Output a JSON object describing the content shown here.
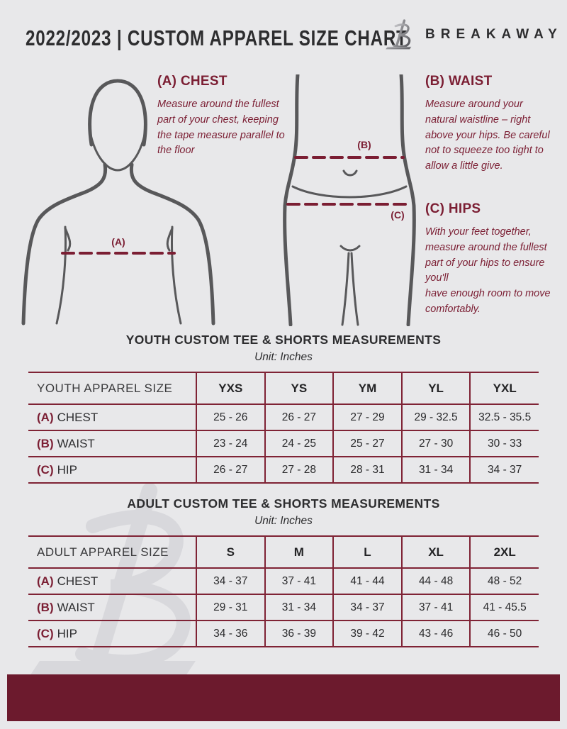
{
  "theme": {
    "background": "#e8e8ea",
    "accent": "#7b1e33",
    "footer_bar": "#6c1a2d",
    "text_dark": "#2e2e30",
    "figure_gray": "#58585a",
    "table_border": "#7f2335",
    "watermark_gray": "#d8d8dc"
  },
  "header": {
    "title": "2022/2023  |  CUSTOM APPAREL SIZE CHART",
    "brand": "BREAKAWAY",
    "logo_letter": "B"
  },
  "instructions": [
    {
      "marker": "(A)",
      "heading": "(A) CHEST",
      "body": "Measure around the fullest part of your chest, keeping the tape measure parallel to the floor"
    },
    {
      "marker": "(B)",
      "heading": "(B) WAIST",
      "body": "Measure around your natural waistline – right above your hips. Be careful not to squeeze too tight to allow a little give."
    },
    {
      "marker": "(C)",
      "heading": "(C) HIPS",
      "body": "With your feet together, measure around the fullest part of your hips to ensure you'll\nhave enough room to move comfortably."
    }
  ],
  "tables": [
    {
      "id": "youth",
      "title": "YOUTH CUSTOM TEE & SHORTS MEASUREMENTS",
      "unit": "Unit: Inches",
      "size_label": "YOUTH APPAREL SIZE",
      "sizes": [
        "YXS",
        "YS",
        "YM",
        "YL",
        "YXL"
      ],
      "rows": [
        {
          "prefix": "(A)",
          "label": "CHEST",
          "values": [
            "25 - 26",
            "26 - 27",
            "27 - 29",
            "29 - 32.5",
            "32.5 - 35.5"
          ]
        },
        {
          "prefix": "(B)",
          "label": "WAIST",
          "values": [
            "23 - 24",
            "24 - 25",
            "25 - 27",
            "27 - 30",
            "30 - 33"
          ]
        },
        {
          "prefix": "(C)",
          "label": "HIP",
          "values": [
            "26 - 27",
            "27 - 28",
            "28 - 31",
            "31 - 34",
            "34 - 37"
          ]
        }
      ]
    },
    {
      "id": "adult",
      "title": "ADULT CUSTOM TEE & SHORTS MEASUREMENTS",
      "unit": "Unit: Inches",
      "size_label": "ADULT APPAREL SIZE",
      "sizes": [
        "S",
        "M",
        "L",
        "XL",
        "2XL"
      ],
      "rows": [
        {
          "prefix": "(A)",
          "label": "CHEST",
          "values": [
            "34 - 37",
            "37 - 41",
            "41 - 44",
            "44 - 48",
            "48 - 52"
          ]
        },
        {
          "prefix": "(B)",
          "label": "WAIST",
          "values": [
            "29 - 31",
            "31 - 34",
            "34 - 37",
            "37 - 41",
            "41 - 45.5"
          ]
        },
        {
          "prefix": "(C)",
          "label": "HIP",
          "values": [
            "34 - 36",
            "36 - 39",
            "39 - 42",
            "43 - 46",
            "46 - 50"
          ]
        }
      ]
    }
  ]
}
